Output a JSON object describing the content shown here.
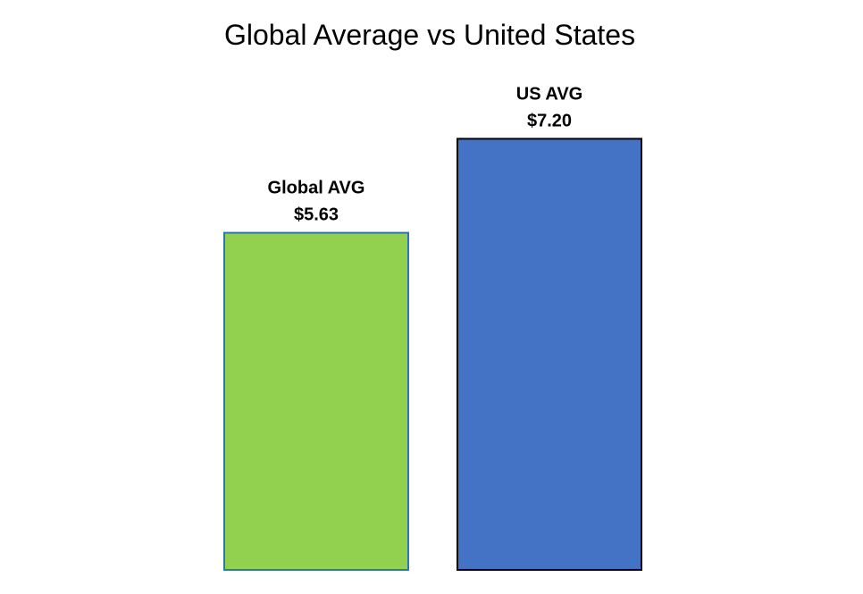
{
  "chart_data": {
    "type": "bar",
    "title": "Global Average vs United States",
    "categories": [
      "Global AVG",
      "US AVG"
    ],
    "values": [
      5.63,
      7.2
    ],
    "value_labels": [
      "$5.63",
      "$7.20"
    ],
    "colors": [
      "#92d050",
      "#4472c4"
    ],
    "border_colors": [
      "#2e75b6",
      "#000000"
    ],
    "xlabel": "",
    "ylabel": "",
    "ylim": [
      0,
      9.1
    ],
    "grid": false,
    "legend": "none",
    "axes_visible": false
  }
}
